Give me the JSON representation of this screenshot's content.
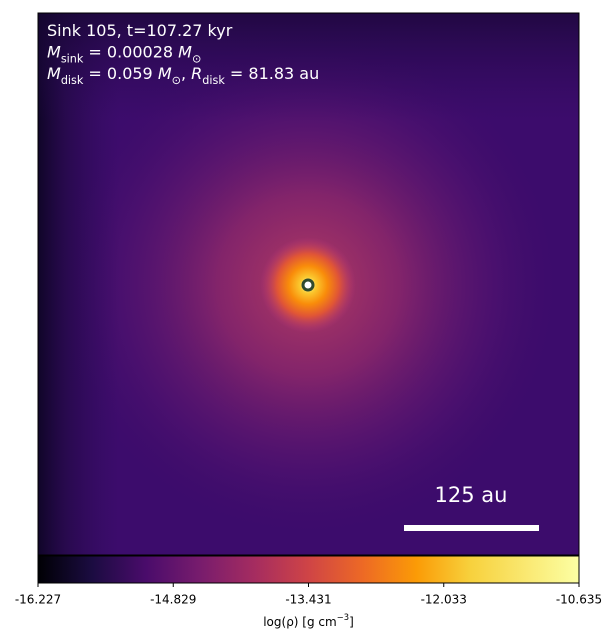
{
  "chart_data": {
    "type": "image",
    "colormap": "inferno",
    "annotations": [
      [
        {
          "text": "Sink 105, t=107.27 kyr",
          "style": "normal"
        }
      ],
      [
        {
          "text": "M",
          "style": "italic"
        },
        {
          "text": "sink",
          "style": "sub"
        },
        {
          "text": " = 0.00028 ",
          "style": "normal"
        },
        {
          "text": "M",
          "style": "italic"
        },
        {
          "text": "⊙",
          "style": "sub"
        }
      ],
      [
        {
          "text": "M",
          "style": "italic"
        },
        {
          "text": "disk",
          "style": "sub"
        },
        {
          "text": " = 0.059 ",
          "style": "normal"
        },
        {
          "text": "M",
          "style": "italic"
        },
        {
          "text": "⊙",
          "style": "sub"
        },
        {
          "text": ", ",
          "style": "normal"
        },
        {
          "text": "R",
          "style": "italic"
        },
        {
          "text": "disk",
          "style": "sub"
        },
        {
          "text": " = 81.83 au",
          "style": "normal"
        }
      ]
    ],
    "scale_bar": "125 au",
    "colorbar": {
      "label": [
        {
          "text": "log(ρ) [g cm",
          "style": "normal"
        },
        {
          "text": "−3",
          "style": "sup"
        },
        {
          "text": "]",
          "style": "normal"
        }
      ],
      "clim": [
        -16.227,
        -10.635
      ],
      "ticks": [
        -16.227,
        -14.829,
        -13.431,
        -12.033,
        -10.635
      ]
    }
  }
}
